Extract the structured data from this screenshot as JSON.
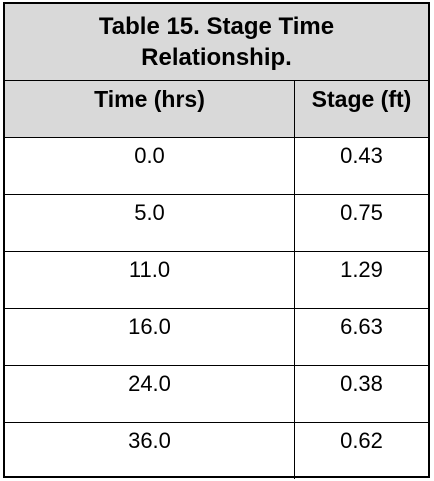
{
  "table": {
    "title": "Table 15.  Stage Time\nRelationship.",
    "headers": {
      "time": "Time (hrs)",
      "stage": "Stage (ft)"
    },
    "rows": [
      {
        "time": "0.0",
        "stage": "0.43"
      },
      {
        "time": "5.0",
        "stage": "0.75"
      },
      {
        "time": "11.0",
        "stage": "1.29"
      },
      {
        "time": "16.0",
        "stage": "6.63"
      },
      {
        "time": "24.0",
        "stage": "0.38"
      },
      {
        "time": "36.0",
        "stage": "0.62"
      }
    ]
  },
  "colors": {
    "header_background": "#d9d9d9",
    "border": "#000000",
    "body_background": "#ffffff"
  }
}
